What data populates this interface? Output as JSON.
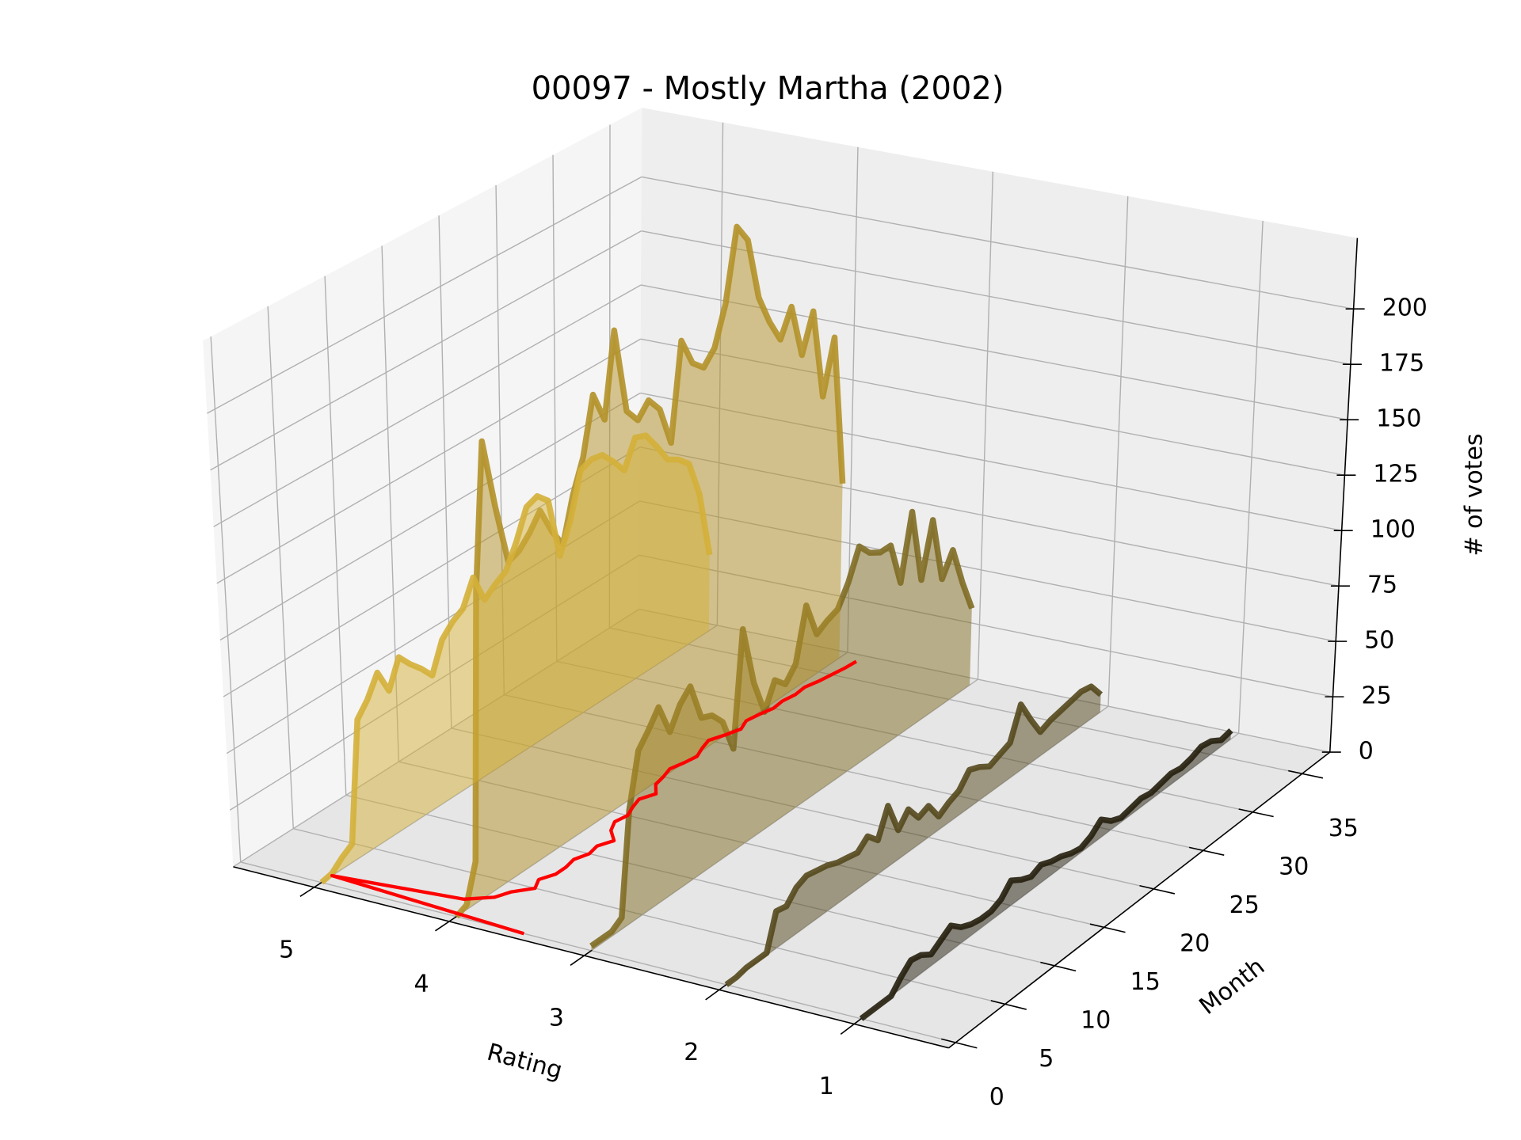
{
  "chart_data": {
    "type": "line3d",
    "title": "00097 - Mostly Martha (2002)",
    "xlabel": "Rating",
    "ylabel": "Month",
    "zlabel": "# of votes",
    "xlim": [
      5.6,
      0.3
    ],
    "xticks": [
      5,
      4,
      3,
      2,
      1
    ],
    "ylim": [
      -0.7,
      37.8
    ],
    "yticks": [
      0,
      5,
      10,
      15,
      20,
      25,
      30,
      35
    ],
    "zlim": [
      0,
      232
    ],
    "zticks": [
      0,
      25,
      50,
      75,
      100,
      125,
      150,
      175,
      200
    ],
    "grid": true,
    "x": [
      0,
      1,
      2,
      3,
      4,
      5,
      6,
      7,
      8,
      9,
      10,
      11,
      12,
      13,
      14,
      15,
      16,
      17,
      18,
      19,
      20,
      21,
      22,
      23,
      24,
      25,
      26,
      27,
      28,
      29,
      30,
      31,
      32,
      33,
      34,
      35,
      36,
      37
    ],
    "series": [
      {
        "color": "#d4b038",
        "values": [
          0,
          1,
          5,
          8,
          60,
          66,
          75,
          64,
          76,
          70,
          65,
          59,
          72,
          77,
          80,
          91,
          78,
          82,
          85,
          95,
          108,
          110,
          105,
          77,
          90,
          110,
          112,
          111,
          105,
          98,
          110,
          108,
          100,
          91,
          88,
          83,
          66,
          35
        ]
      },
      {
        "color": "#b39128",
        "values": [
          0,
          2,
          18,
          134,
          197,
          165,
          138,
          140,
          145,
          152,
          140,
          131,
          150,
          164,
          189,
          175,
          212,
          173,
          166,
          172,
          165,
          147,
          190,
          177,
          172,
          178,
          195,
          227,
          218,
          189,
          175,
          164,
          176,
          151,
          168,
          126,
          150,
          80
        ]
      },
      {
        "color": "#7f6c24",
        "values": [
          2,
          2,
          2,
          5,
          49,
          72,
          78,
          85,
          71,
          80,
          85,
          68,
          66,
          60,
          45,
          95,
          68,
          52,
          63,
          58,
          64,
          87,
          71,
          74,
          76,
          85,
          98,
          92,
          89,
          89,
          69,
          98,
          64,
          88,
          58,
          68,
          50,
          35
        ]
      },
      {
        "color": "#54481c",
        "values": [
          0,
          0,
          1,
          1,
          1,
          16,
          15,
          20,
          22,
          21,
          20,
          18,
          17,
          16,
          20,
          15,
          27,
          13,
          19,
          12,
          14,
          6,
          9,
          11,
          17,
          15,
          12,
          14,
          16,
          30,
          20,
          11,
          13,
          14,
          15,
          16,
          15,
          8
        ]
      },
      {
        "color": "#231e0c",
        "values": [
          0,
          0,
          0,
          0,
          5,
          9,
          8,
          5,
          8,
          11,
          7,
          5,
          4,
          4,
          6,
          11,
          8,
          6,
          8,
          6,
          5,
          3,
          2,
          4,
          8,
          4,
          2,
          3,
          4,
          3,
          4,
          5,
          4,
          5,
          7,
          6,
          3,
          4
        ]
      }
    ],
    "floor_line": {
      "color": "#ff0000",
      "values": [
        3.5,
        5.0,
        4.1,
        3.95,
        3.9,
        3.8,
        3.85,
        3.8,
        3.8,
        3.82,
        3.78,
        3.8,
        3.75,
        3.85,
        3.9,
        3.88,
        3.92,
        3.95,
        3.9,
        3.98,
        4.0,
        4.03,
        4.0,
        3.98,
        4.02,
        4.05,
        4.0,
        3.96,
        4.0,
        3.98,
        3.95,
        3.96,
        3.94,
        3.95,
        3.92,
        3.9,
        3.88,
        3.87
      ]
    }
  }
}
